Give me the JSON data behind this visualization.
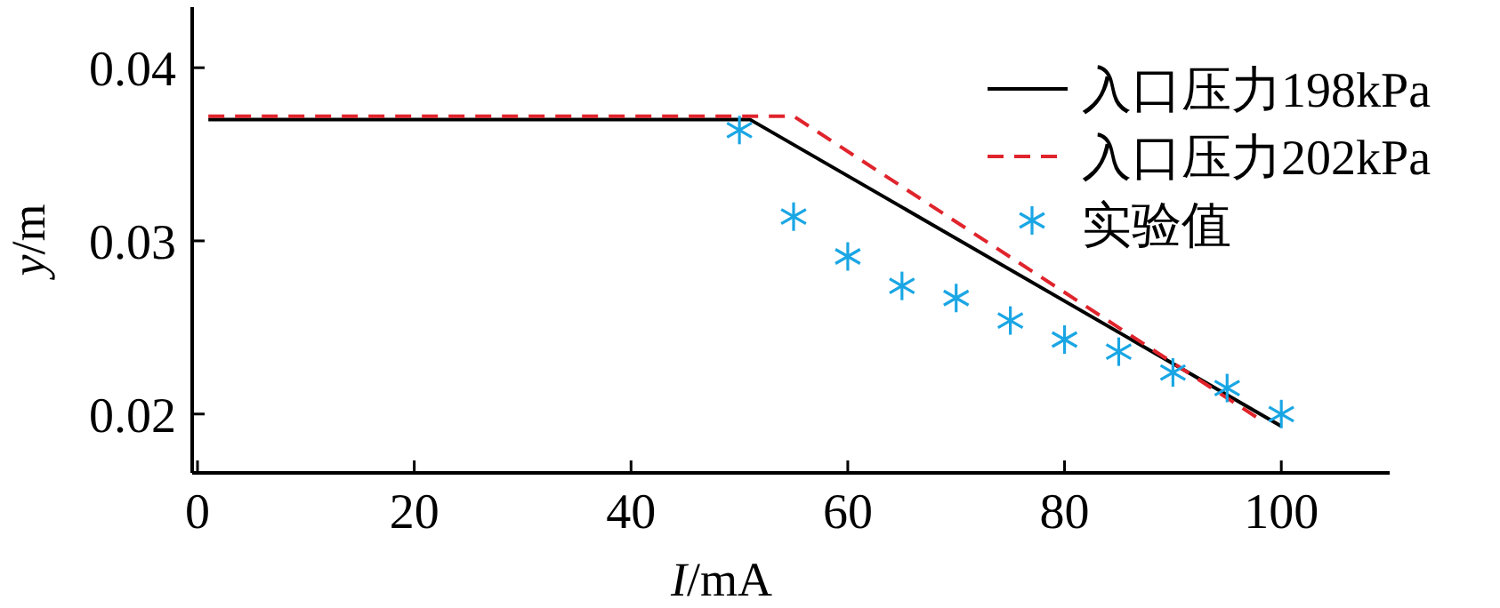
{
  "chart_data": {
    "type": "line",
    "xlabel": "*I*/mA",
    "ylabel": "*y*/m",
    "xlim": [
      0,
      110
    ],
    "ylim": [
      0.0166,
      0.0435
    ],
    "xticks": [
      0,
      20,
      40,
      60,
      80,
      100
    ],
    "yticks": [
      0.02,
      0.03,
      0.04
    ],
    "legend": "top right",
    "grid": false,
    "series": [
      {
        "name": "入口压力198kPa",
        "color": "#000000",
        "line_style": "solid",
        "x": [
          1,
          51,
          100
        ],
        "values": [
          0.037,
          0.037,
          0.0193
        ]
      },
      {
        "name": "入口压力202kPa",
        "color": "#e0242c",
        "line_style": "dashed",
        "x": [
          1,
          55,
          98
        ],
        "values": [
          0.0372,
          0.0372,
          0.0197
        ]
      },
      {
        "name": "实验值",
        "type": "scatter",
        "color": "#1aa6e4",
        "marker": "cross",
        "x": [
          50,
          55,
          60,
          65,
          70,
          75,
          80,
          85,
          90,
          95,
          100
        ],
        "values": [
          0.0364,
          0.0314,
          0.0291,
          0.0274,
          0.0267,
          0.0254,
          0.0243,
          0.0236,
          0.0224,
          0.0215,
          0.02
        ]
      }
    ]
  }
}
